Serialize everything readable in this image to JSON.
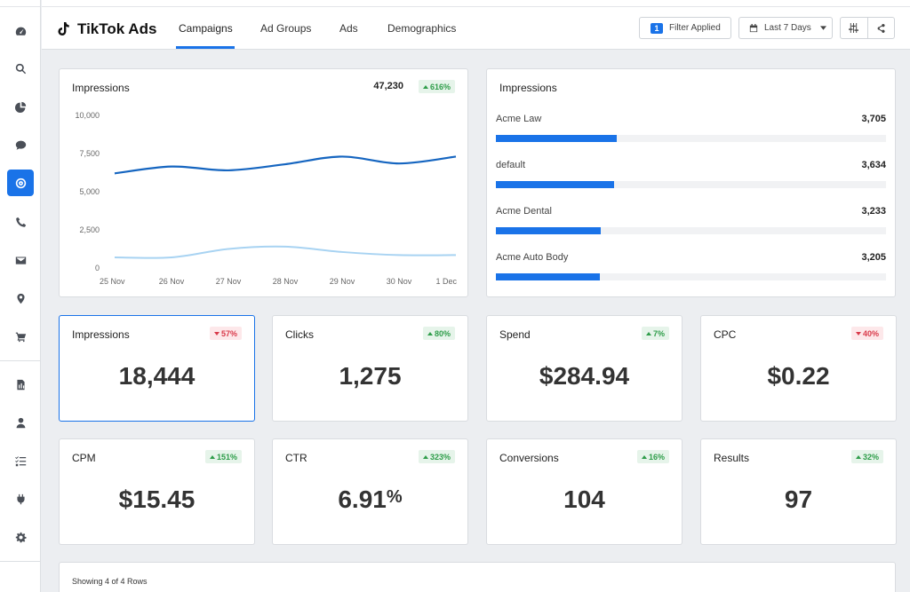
{
  "sidebar": {
    "items": [
      {
        "name": "dashboard-icon",
        "active": false
      },
      {
        "name": "search-icon",
        "active": false
      },
      {
        "name": "pie-chart-icon",
        "active": false
      },
      {
        "name": "chat-icon",
        "active": false
      },
      {
        "name": "target-icon",
        "active": true
      },
      {
        "name": "phone-icon",
        "active": false
      },
      {
        "name": "mail-icon",
        "active": false
      },
      {
        "name": "location-pin-icon",
        "active": false
      },
      {
        "name": "cart-icon",
        "active": false
      },
      {
        "name": "report-icon",
        "active": false
      },
      {
        "name": "user-icon",
        "active": false
      },
      {
        "name": "checklist-icon",
        "active": false
      },
      {
        "name": "plug-icon",
        "active": false
      },
      {
        "name": "gear-icon",
        "active": false
      }
    ]
  },
  "header": {
    "title": "TikTok Ads",
    "tabs": [
      {
        "label": "Campaigns",
        "active": true
      },
      {
        "label": "Ad Groups",
        "active": false
      },
      {
        "label": "Ads",
        "active": false
      },
      {
        "label": "Demographics",
        "active": false
      }
    ],
    "filter_count": "1",
    "filter_label": "Filter Applied",
    "date_range": "Last 7 Days"
  },
  "impressions_chart": {
    "title": "Impressions",
    "total": "47,230",
    "change": "616%",
    "change_direction": "up",
    "chart_data": {
      "type": "line",
      "x": [
        "25 Nov",
        "26 Nov",
        "27 Nov",
        "28 Nov",
        "29 Nov",
        "30 Nov",
        "1 Dec"
      ],
      "series": [
        {
          "values": [
            6200,
            6650,
            6400,
            6800,
            7300,
            6850,
            7300
          ],
          "color": "#1565c0"
        },
        {
          "values": [
            700,
            700,
            1250,
            1400,
            1050,
            850,
            850
          ],
          "color": "#a8d3f2"
        }
      ],
      "ylim": [
        0,
        10000
      ],
      "yticks": [
        "0",
        "2,500",
        "5,000",
        "7,500",
        "10,000"
      ],
      "ytick_values": [
        0,
        2500,
        5000,
        7500,
        10000
      ],
      "grid": false
    }
  },
  "impressions_list": {
    "title": "Impressions",
    "max": 12000,
    "rows": [
      {
        "label": "Acme Law",
        "value": "3,705",
        "amount": 3705
      },
      {
        "label": "default",
        "value": "3,634",
        "amount": 3634
      },
      {
        "label": "Acme Dental",
        "value": "3,233",
        "amount": 3233
      },
      {
        "label": "Acme Auto Body",
        "value": "3,205",
        "amount": 3205
      }
    ]
  },
  "metrics": [
    {
      "title": "Impressions",
      "value": "18,444",
      "suffix": "",
      "change": "57%",
      "direction": "down",
      "selected": true
    },
    {
      "title": "Clicks",
      "value": "1,275",
      "suffix": "",
      "change": "80%",
      "direction": "up",
      "selected": false
    },
    {
      "title": "Spend",
      "value": "$284.94",
      "suffix": "",
      "change": "7%",
      "direction": "up",
      "selected": false
    },
    {
      "title": "CPC",
      "value": "$0.22",
      "suffix": "",
      "change": "40%",
      "direction": "down",
      "selected": false
    },
    {
      "title": "CPM",
      "value": "$15.45",
      "suffix": "",
      "change": "151%",
      "direction": "up",
      "selected": false
    },
    {
      "title": "CTR",
      "value": "6.91",
      "suffix": "%",
      "change": "323%",
      "direction": "up",
      "selected": false
    },
    {
      "title": "Conversions",
      "value": "104",
      "suffix": "",
      "change": "16%",
      "direction": "up",
      "selected": false
    },
    {
      "title": "Results",
      "value": "97",
      "suffix": "",
      "change": "32%",
      "direction": "up",
      "selected": false
    }
  ],
  "table": {
    "showing": "Showing 4 of 4 Rows"
  }
}
